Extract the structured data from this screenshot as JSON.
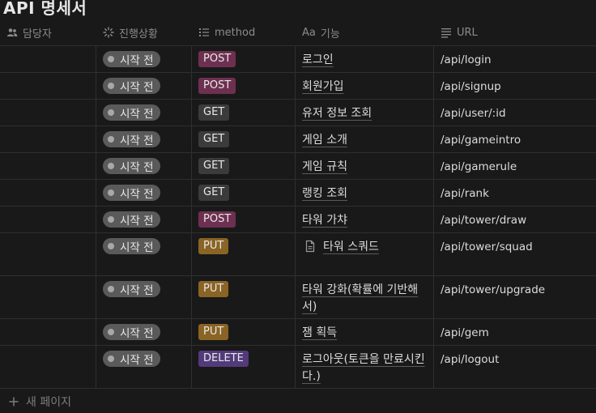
{
  "page": {
    "title": "API 명세서"
  },
  "columns": {
    "assignee": "담당자",
    "status": "진행상황",
    "method": "method",
    "feature": "기능",
    "feature_prefix": "Aa",
    "url": "URL"
  },
  "colors": {
    "POST": "#6e3050",
    "GET": "#3b3b3b",
    "PUT": "#8a6425",
    "DELETE": "#533a7a",
    "status_pill": "#5a5a5a"
  },
  "rows": [
    {
      "assignee": "",
      "status": "시작 전",
      "method": "POST",
      "feature": "로그인",
      "url": "/api/login"
    },
    {
      "assignee": "",
      "status": "시작 전",
      "method": "POST",
      "feature": "회원가입",
      "url": "/api/signup"
    },
    {
      "assignee": "",
      "status": "시작 전",
      "method": "GET",
      "feature": "유저 정보 조회",
      "url": "/api/user/:id"
    },
    {
      "assignee": "",
      "status": "시작 전",
      "method": "GET",
      "feature": "게임 소개",
      "url": "/api/gameintro"
    },
    {
      "assignee": "",
      "status": "시작 전",
      "method": "GET",
      "feature": "게임 규칙",
      "url": "/api/gamerule"
    },
    {
      "assignee": "",
      "status": "시작 전",
      "method": "GET",
      "feature": "랭킹 조회",
      "url": "/api/rank"
    },
    {
      "assignee": "",
      "status": "시작 전",
      "method": "POST",
      "feature": "타워 가챠",
      "url": "/api/tower/draw"
    },
    {
      "assignee": "",
      "status": "시작 전",
      "method": "PUT",
      "feature": "타워 스쿼드",
      "url": "/api/tower/squad",
      "has_doc_icon": true
    },
    {
      "assignee": "",
      "status": "시작 전",
      "method": "PUT",
      "feature": "타워 강화(확률에 기반해서)",
      "url": "/api/tower/upgrade"
    },
    {
      "assignee": "",
      "status": "시작 전",
      "method": "PUT",
      "feature": "잼 획득",
      "url": "/api/gem"
    },
    {
      "assignee": "",
      "status": "시작 전",
      "method": "DELETE",
      "feature": "로그아웃(토큰을 만료시킨다.)",
      "url": "/api/logout"
    }
  ],
  "footer": {
    "new_page": "새 페이지"
  }
}
